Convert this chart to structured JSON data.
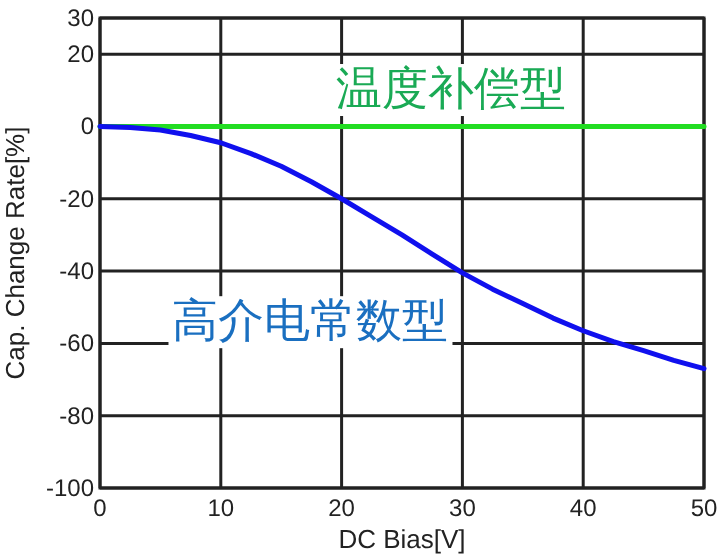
{
  "chart_data": {
    "type": "line",
    "xlabel": "DC Bias[V]",
    "ylabel": "Cap. Change Rate[%]",
    "xlim": [
      0,
      50
    ],
    "ylim": [
      -100,
      30
    ],
    "xticks": [
      0,
      10,
      20,
      30,
      40,
      50
    ],
    "yticks": [
      -100,
      -80,
      -60,
      -40,
      -20,
      0,
      20,
      30
    ],
    "grid": true,
    "marker": "none",
    "line_style": "solid",
    "series": [
      {
        "name": "温度补偿型",
        "color": "#22dd22",
        "x": [
          0,
          10,
          20,
          30,
          40,
          50
        ],
        "values": [
          0,
          0,
          0,
          0,
          0,
          0
        ]
      },
      {
        "name": "高介电常数型",
        "color": "#1010ee",
        "x": [
          0,
          2.5,
          5,
          7.5,
          10,
          12.5,
          15,
          17.5,
          20,
          22.5,
          25,
          27.5,
          30,
          32.5,
          35,
          37.5,
          40,
          42.5,
          45,
          47.5,
          50
        ],
        "values": [
          0,
          -0.3,
          -1,
          -2.5,
          -4.5,
          -7.5,
          -11,
          -15.3,
          -20,
          -25,
          -30,
          -35.3,
          -40.5,
          -45,
          -49,
          -53,
          -56.5,
          -59.5,
          -62,
          -64.7,
          -67
        ]
      }
    ]
  }
}
